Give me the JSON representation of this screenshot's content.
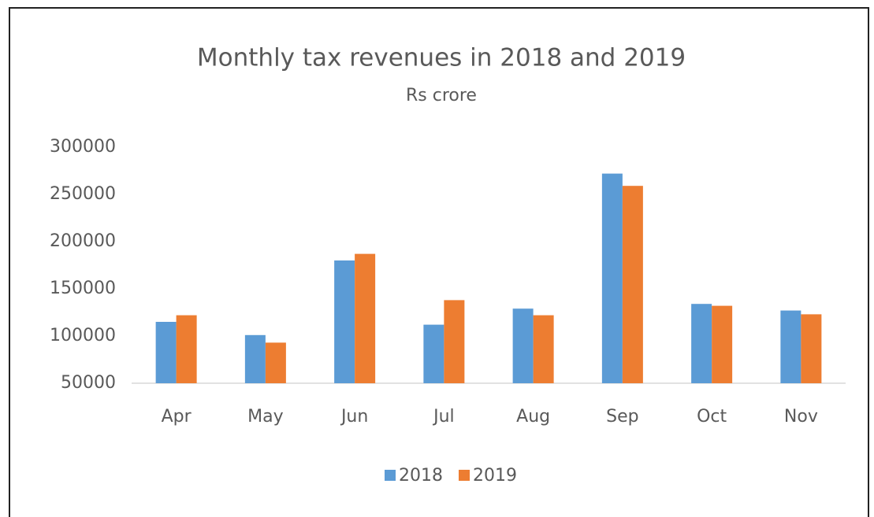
{
  "chart_data": {
    "type": "bar",
    "title": "Monthly tax revenues in 2018 and 2019",
    "subtitle": "Rs crore",
    "categories": [
      "Apr",
      "May",
      "Jun",
      "Jul",
      "Aug",
      "Sep",
      "Oct",
      "Nov"
    ],
    "series": [
      {
        "name": "2018",
        "color": "#5b9bd5",
        "values": [
          115000,
          101000,
          180000,
          112000,
          129000,
          272000,
          134000,
          127000
        ]
      },
      {
        "name": "2019",
        "color": "#ed7d31",
        "values": [
          122000,
          93000,
          187000,
          138000,
          122000,
          259000,
          132000,
          123000
        ]
      }
    ],
    "ylim": [
      50000,
      300000
    ],
    "yticks": [
      50000,
      100000,
      150000,
      200000,
      250000,
      300000
    ],
    "grid": false,
    "legend": "bottom"
  }
}
